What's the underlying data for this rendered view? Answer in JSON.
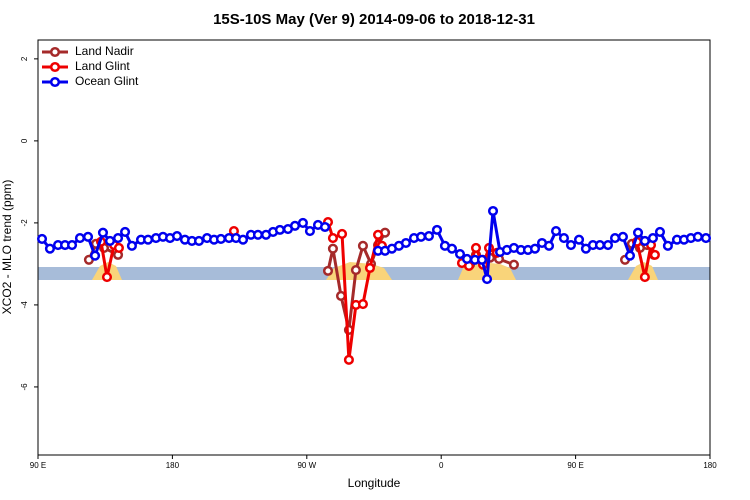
{
  "chart_data": {
    "type": "line",
    "title": "15S-10S May (Ver 9)   2014-09-06 to 2018-12-31",
    "x_label": "Longitude",
    "y_label": "XCO2 - MLO trend (ppm)",
    "xlim": [
      90,
      540
    ],
    "ylim": [
      -7.66,
      2.46
    ],
    "xticks": [
      {
        "value": 90,
        "label": "90 E"
      },
      180,
      {
        "value": 270,
        "label": "90 W"
      },
      {
        "value": 360,
        "label": "0"
      },
      {
        "value": 450,
        "label": "90 E"
      },
      {
        "value": 540,
        "label": "180"
      }
    ],
    "yticks": [
      2,
      0,
      -2,
      -4,
      -6
    ],
    "legend": "top-left",
    "series": [
      {
        "name": "Land Nadir",
        "color": "#a52a2a",
        "x": [
          124.1,
          128.8,
          134.2,
          143.6,
          null,
          284.2,
          287.5,
          292.9,
          298.2,
          302.9,
          307.6,
          313.0,
          317.7,
          322.4,
          null,
          374.6,
          379.3,
          383.3,
          388.0,
          392.7,
          398.7,
          408.7,
          null,
          483.1,
          487.7,
          493.1,
          497.8,
          502.5
        ],
        "values": [
          -2.9,
          -2.51,
          -2.61,
          -2.78,
          null,
          -3.17,
          -2.63,
          -3.78,
          -4.61,
          -3.15,
          -2.56,
          -3.0,
          -2.54,
          -2.24,
          null,
          -2.95,
          -3.02,
          -2.78,
          -2.9,
          -2.85,
          -2.88,
          -3.02,
          null,
          -2.9,
          -2.51,
          -2.61,
          -2.54,
          -2.78
        ]
      },
      {
        "name": "Land Glint",
        "color": "#ee0000",
        "x": [
          132.2,
          136.2,
          140.9,
          144.2,
          null,
          221.2,
          null,
          284.2,
          287.5,
          293.6,
          298.2,
          302.9,
          307.6,
          312.3,
          317.7,
          320.3,
          null,
          373.9,
          378.6,
          383.3,
          388.0,
          392.0,
          397.3,
          null,
          491.1,
          496.4,
          500.5,
          503.1
        ],
        "values": [
          -2.46,
          -3.32,
          -2.54,
          -2.61,
          null,
          -2.2,
          null,
          -1.98,
          -2.37,
          -2.27,
          -5.34,
          -4.0,
          -3.98,
          -3.1,
          -2.29,
          -2.56,
          null,
          -2.98,
          -3.05,
          -2.61,
          -3.02,
          -2.61,
          -2.73,
          null,
          -2.46,
          -3.32,
          -2.54,
          -2.78
        ]
      },
      {
        "name": "Ocean Glint",
        "color": "#0000ee",
        "x": [
          92.7,
          98.0,
          103.4,
          108.1,
          112.8,
          118.1,
          123.5,
          128.2,
          133.5,
          138.2,
          143.6,
          148.3,
          152.9,
          159.0,
          163.7,
          169.0,
          173.7,
          178.4,
          183.1,
          188.4,
          193.1,
          197.8,
          203.2,
          207.9,
          212.5,
          217.9,
          222.6,
          227.3,
          232.6,
          237.3,
          242.7,
          247.4,
          252.0,
          257.4,
          262.1,
          267.4,
          272.1,
          277.5,
          282.2,
          null,
          317.7,
          322.4,
          327.0,
          331.7,
          336.4,
          341.8,
          346.5,
          351.8,
          357.2,
          362.5,
          367.2,
          372.6,
          377.3,
          382.6,
          387.3,
          390.7,
          394.7,
          399.4,
          404.0,
          408.7,
          413.4,
          418.1,
          422.8,
          427.5,
          432.2,
          436.9,
          442.2,
          446.9,
          452.3,
          456.9,
          461.6,
          466.3,
          471.7,
          476.4,
          481.7,
          486.4,
          491.8,
          496.4,
          501.8,
          506.5,
          511.8,
          517.9,
          522.6,
          527.2,
          531.9,
          537.3
        ],
        "values": [
          -2.39,
          -2.63,
          -2.54,
          -2.54,
          -2.54,
          -2.37,
          -2.34,
          -2.8,
          -2.24,
          -2.44,
          -2.37,
          -2.22,
          -2.56,
          -2.41,
          -2.41,
          -2.37,
          -2.34,
          -2.37,
          -2.32,
          -2.41,
          -2.44,
          -2.44,
          -2.37,
          -2.41,
          -2.39,
          -2.37,
          -2.37,
          -2.41,
          -2.29,
          -2.29,
          -2.29,
          -2.22,
          -2.17,
          -2.15,
          -2.07,
          -2.0,
          -2.2,
          -2.05,
          -2.1,
          null,
          -2.68,
          -2.68,
          -2.63,
          -2.56,
          -2.49,
          -2.37,
          -2.34,
          -2.32,
          -2.17,
          -2.56,
          -2.63,
          -2.76,
          -2.88,
          -2.9,
          -2.9,
          -3.37,
          -1.71,
          -2.71,
          -2.66,
          -2.61,
          -2.66,
          -2.66,
          -2.63,
          -2.49,
          -2.56,
          -2.2,
          -2.37,
          -2.54,
          -2.41,
          -2.63,
          -2.54,
          -2.54,
          -2.54,
          -2.37,
          -2.34,
          -2.8,
          -2.24,
          -2.44,
          -2.37,
          -2.22,
          -2.56,
          -2.41,
          -2.41,
          -2.37,
          -2.34,
          -2.37
        ]
      }
    ]
  }
}
